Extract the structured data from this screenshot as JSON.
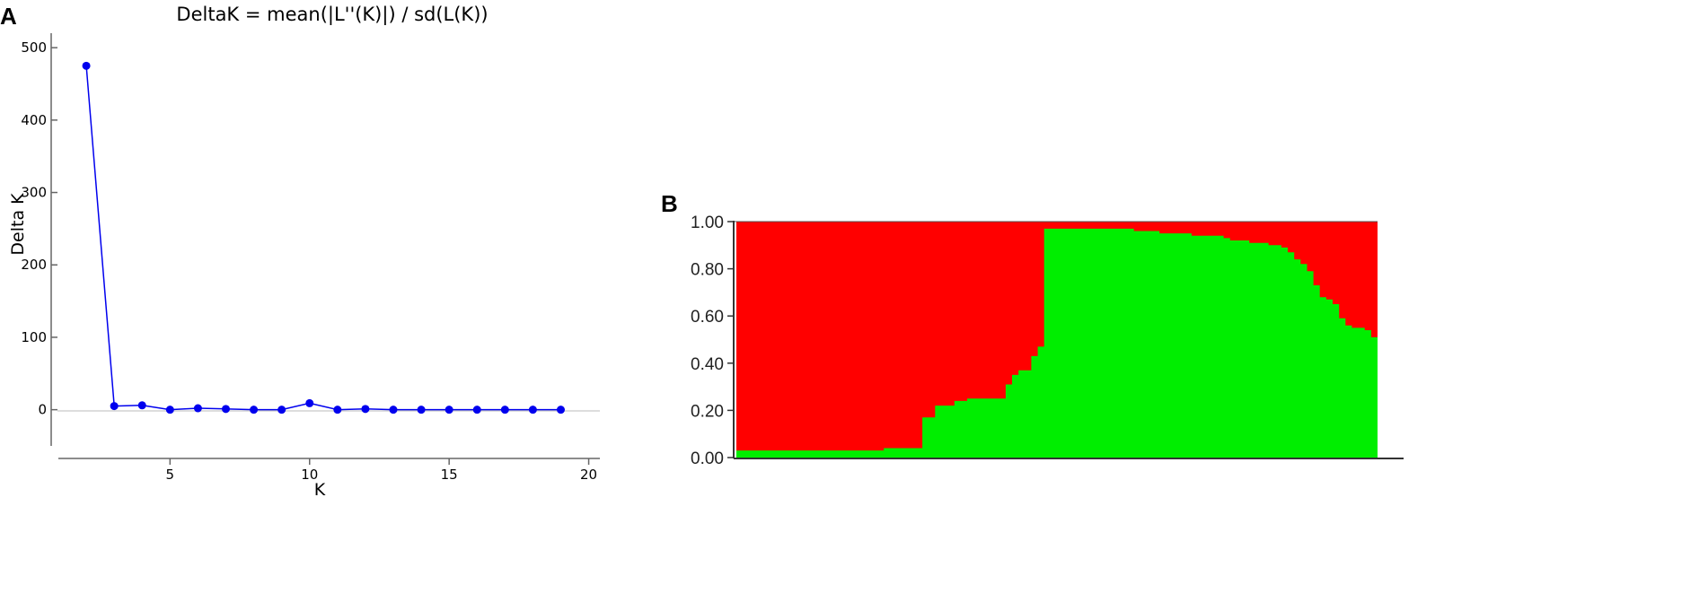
{
  "chart_data": [
    {
      "panel": "A",
      "type": "line",
      "title": "DeltaK = mean(|L''(K)|) / sd(L(K))",
      "xlabel": "K",
      "ylabel": "Delta K",
      "xlim": [
        1,
        20.4
      ],
      "ylim": [
        -50,
        520
      ],
      "xticks": [
        5,
        10,
        15,
        20
      ],
      "yticks": [
        0,
        100,
        200,
        300,
        400,
        500
      ],
      "zero_line": true,
      "grid": false,
      "color": "#0000ee",
      "series": [
        {
          "x": [
            2,
            3,
            4,
            5,
            6,
            7,
            8,
            9,
            10,
            11,
            12,
            13,
            14,
            15,
            16,
            17,
            18,
            19
          ],
          "values": [
            475,
            5,
            6,
            0,
            2,
            1,
            0,
            0,
            9,
            0,
            1,
            0,
            0,
            0,
            0,
            0,
            0,
            0
          ]
        }
      ]
    },
    {
      "panel": "B",
      "type": "area",
      "yticks": [
        "0.00",
        "0.20",
        "0.40",
        "0.60",
        "0.80",
        "1.00"
      ],
      "ylim": [
        0,
        1
      ],
      "n_individuals": 100,
      "colors": {
        "cluster_1": "#00ee00",
        "cluster_2": "#ff0000"
      },
      "cluster_1_fraction": [
        0.03,
        0.03,
        0.03,
        0.03,
        0.03,
        0.03,
        0.03,
        0.03,
        0.03,
        0.03,
        0.03,
        0.03,
        0.03,
        0.03,
        0.03,
        0.03,
        0.03,
        0.03,
        0.03,
        0.03,
        0.03,
        0.03,
        0.03,
        0.04,
        0.04,
        0.04,
        0.04,
        0.04,
        0.04,
        0.17,
        0.17,
        0.22,
        0.22,
        0.22,
        0.24,
        0.24,
        0.25,
        0.25,
        0.25,
        0.25,
        0.25,
        0.25,
        0.31,
        0.35,
        0.37,
        0.37,
        0.43,
        0.47,
        0.97,
        0.97,
        0.97,
        0.97,
        0.97,
        0.97,
        0.97,
        0.97,
        0.97,
        0.97,
        0.97,
        0.97,
        0.97,
        0.97,
        0.96,
        0.96,
        0.96,
        0.96,
        0.95,
        0.95,
        0.95,
        0.95,
        0.95,
        0.94,
        0.94,
        0.94,
        0.94,
        0.94,
        0.93,
        0.92,
        0.92,
        0.92,
        0.91,
        0.91,
        0.91,
        0.9,
        0.9,
        0.89,
        0.87,
        0.84,
        0.82,
        0.79,
        0.73,
        0.68,
        0.67,
        0.65,
        0.59,
        0.56,
        0.55,
        0.55,
        0.54,
        0.51
      ]
    }
  ],
  "panels": {
    "a_label": "A",
    "b_label": "B"
  }
}
